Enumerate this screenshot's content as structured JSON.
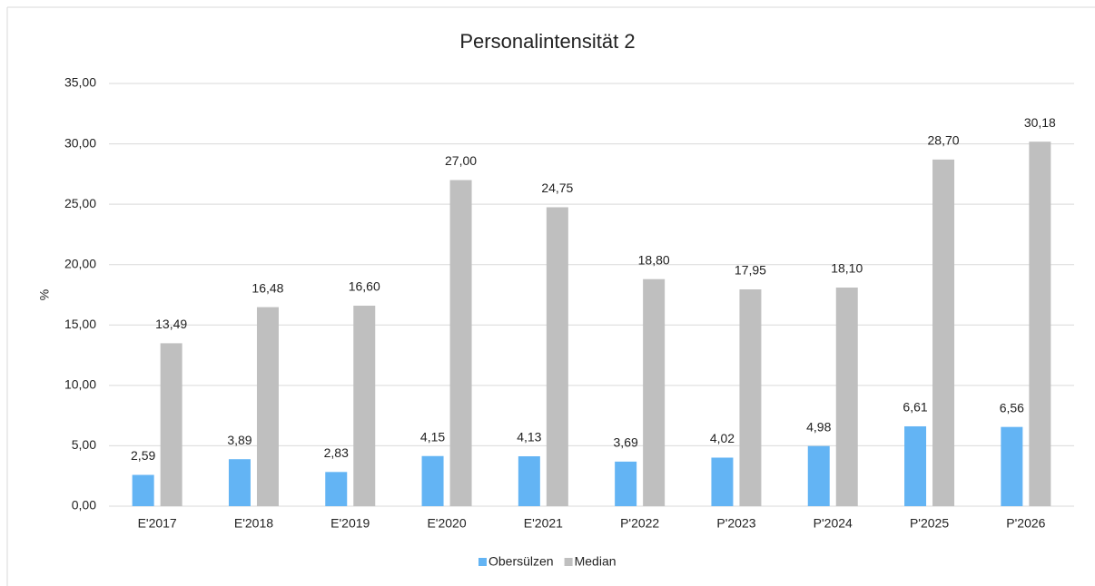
{
  "chart_data": {
    "type": "bar",
    "title": "Personalintensität 2",
    "y_label": "%",
    "categories": [
      "E'2017",
      "E'2018",
      "E'2019",
      "E'2020",
      "E'2021",
      "P'2022",
      "P'2023",
      "P'2024",
      "P'2025",
      "P'2026"
    ],
    "series": [
      {
        "name": "Obersülzen",
        "color": "#63b4f4",
        "values": [
          2.59,
          3.89,
          2.83,
          4.15,
          4.13,
          3.69,
          4.02,
          4.98,
          6.61,
          6.56
        ],
        "value_labels": [
          "2,59",
          "3,89",
          "2,83",
          "4,15",
          "4,13",
          "3,69",
          "4,02",
          "4,98",
          "6,61",
          "6,56"
        ]
      },
      {
        "name": "Median",
        "color": "#bfbfbf",
        "values": [
          13.49,
          16.48,
          16.6,
          27.0,
          24.75,
          18.8,
          17.95,
          18.1,
          28.7,
          30.18
        ],
        "value_labels": [
          "13,49",
          "16,48",
          "16,60",
          "27,00",
          "24,75",
          "18,80",
          "17,95",
          "18,10",
          "28,70",
          "30,18"
        ]
      }
    ],
    "ylim": [
      0,
      35
    ],
    "yticks": [
      {
        "value": 0,
        "label": "0,00"
      },
      {
        "value": 5,
        "label": "5,00"
      },
      {
        "value": 10,
        "label": "10,00"
      },
      {
        "value": 15,
        "label": "15,00"
      },
      {
        "value": 20,
        "label": "20,00"
      },
      {
        "value": 25,
        "label": "25,00"
      },
      {
        "value": 30,
        "label": "30,00"
      },
      {
        "value": 35,
        "label": "35,00"
      }
    ],
    "grid": true,
    "legend": "bottom"
  }
}
